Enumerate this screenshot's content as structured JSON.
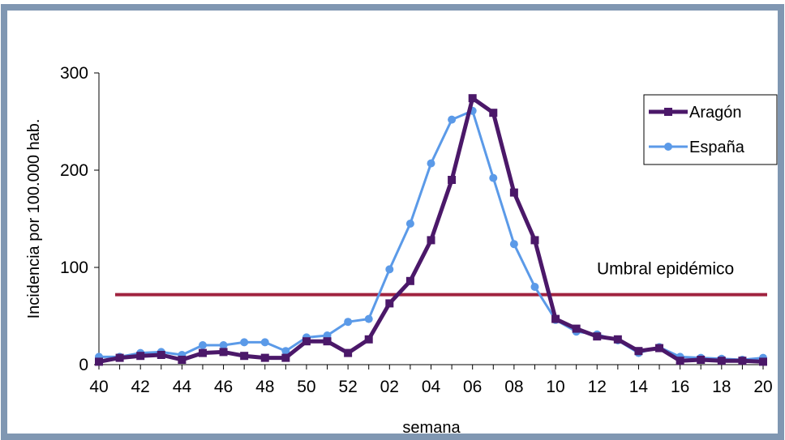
{
  "chart_data": {
    "type": "line",
    "xlabel": "semana",
    "ylabel": "Incidencia por 100.000 hab.",
    "ylim": [
      0,
      300
    ],
    "yticks": [
      "0",
      "100",
      "200",
      "300"
    ],
    "x": [
      "40",
      "41",
      "42",
      "43",
      "44",
      "45",
      "46",
      "47",
      "48",
      "49",
      "50",
      "51",
      "52",
      "01",
      "02",
      "03",
      "04",
      "05",
      "06",
      "07",
      "08",
      "09",
      "10",
      "11",
      "12",
      "13",
      "14",
      "15",
      "16",
      "17",
      "18",
      "19",
      "20"
    ],
    "xtick_labels": [
      "40",
      "",
      "42",
      "",
      "44",
      "",
      "46",
      "",
      "48",
      "",
      "50",
      "",
      "52",
      "",
      "02",
      "",
      "04",
      "",
      "06",
      "",
      "08",
      "",
      "10",
      "",
      "12",
      "",
      "14",
      "",
      "16",
      "",
      "18",
      "",
      "20"
    ],
    "series": [
      {
        "name": "Aragón",
        "color": "#4b1869",
        "marker": "square",
        "values": [
          3,
          7,
          9,
          10,
          5,
          12,
          13,
          9,
          7,
          7,
          24,
          24,
          12,
          26,
          63,
          86,
          128,
          190,
          274,
          259,
          177,
          128,
          47,
          37,
          29,
          26,
          14,
          17,
          4,
          5,
          4,
          4,
          3
        ]
      },
      {
        "name": "España",
        "color": "#5b9ae8",
        "marker": "circle",
        "values": [
          8,
          8,
          12,
          13,
          10,
          20,
          20,
          23,
          23,
          14,
          28,
          30,
          44,
          47,
          98,
          145,
          207,
          252,
          261,
          192,
          124,
          80,
          46,
          34,
          31,
          25,
          12,
          18,
          8,
          7,
          6,
          5,
          7
        ]
      }
    ],
    "threshold": {
      "label": "Umbral epidémico",
      "value": 72,
      "color": "#a0233f"
    },
    "legend_position": "top-right",
    "grid": false
  },
  "colors": {
    "frame_border": "#8097b2",
    "background": "#ffffff"
  }
}
